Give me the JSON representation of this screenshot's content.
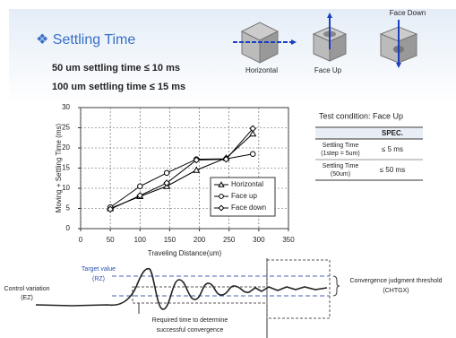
{
  "slide": {
    "title": "❖ Settling Time",
    "specs": [
      "50 um settling time ≤ 10 ms",
      "100 um settling time ≤ 15 ms"
    ],
    "orientations": [
      "Horizontal",
      "Face Up",
      "Face Down"
    ]
  },
  "chart_data": {
    "type": "line",
    "ylabel": "Moving + Settling Time (ms)",
    "xlabel": "Traveling Distance(um)",
    "x": [
      50,
      100,
      145,
      195,
      245,
      290
    ],
    "series": [
      {
        "name": "Horizontal",
        "marker": "triangle",
        "color": "#000000",
        "values": [
          5,
          8,
          10.5,
          14.5,
          17.5,
          23.5
        ]
      },
      {
        "name": "Face up",
        "marker": "circle",
        "color": "#000000",
        "values": [
          5.3,
          10.5,
          13.8,
          17.2,
          17.3,
          18.5
        ]
      },
      {
        "name": "Face down",
        "marker": "diamond",
        "color": "#000000",
        "values": [
          4.8,
          8.2,
          11.3,
          17,
          17.2,
          24.8
        ]
      }
    ],
    "xlim": [
      0,
      350
    ],
    "xticks": [
      0,
      50,
      100,
      150,
      200,
      250,
      300,
      350
    ],
    "ylim": [
      0,
      30
    ],
    "yticks": [
      0,
      5,
      10,
      15,
      20,
      25,
      30
    ],
    "grid": true,
    "legend": "lower right"
  },
  "table": {
    "caption": "Test condition: Face Up",
    "header": "SPEC.",
    "rows": [
      {
        "label": [
          "Settling Time",
          "(1step = 5um)"
        ],
        "spec": "≤ 5 ms"
      },
      {
        "label": [
          "Settling Time",
          "(50um)"
        ],
        "spec": "≤ 50 ms"
      }
    ]
  },
  "diagram": {
    "control_variation": [
      "Control variation",
      "(EZ)"
    ],
    "target_value": [
      "Target value",
      "(RZ)"
    ],
    "required_time": [
      "Required time to determine",
      "successful convergence"
    ],
    "threshold": [
      "Convergence judgment threshold",
      "(CHTGX)"
    ]
  }
}
